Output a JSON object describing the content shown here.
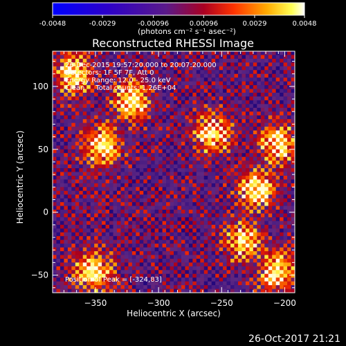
{
  "chart_data": {
    "type": "heatmap",
    "title": "Reconstructed RHESSI Image",
    "xlabel": "Heliocentric X (arcsec)",
    "ylabel": "Heliocentric Y (arcsec)",
    "xlim": [
      -384,
      -192
    ],
    "ylim": [
      -64,
      128
    ],
    "xticks": [
      -350,
      -300,
      -250,
      -200
    ],
    "yticks": [
      -50,
      0,
      50,
      100
    ],
    "colorbar": {
      "min": -0.0048,
      "max": 0.0048,
      "ticks": [
        "-0.0048",
        "-0.0029",
        "-0.00096",
        "0.00096",
        "0.0029",
        "0.0048"
      ],
      "tick_values": [
        -0.0048,
        -0.0029,
        -0.00096,
        0.00096,
        0.0029,
        0.0048
      ],
      "label": "(photons cm⁻² s⁻¹ asec⁻²)",
      "colormap": "blue-purple-red-yellow-white"
    },
    "annotations": [
      "26-Dec-2015 19:57:20.000 to 20:07:20.000",
      "Detectors: 1F 5F 7F, Att 0",
      "Energy Range: 12.0 - 25.0 keV",
      "Clean     Total counts: 1.26E+04"
    ],
    "peak_label": "Position of Peak = [-324,83]",
    "grid": false,
    "bright_regions": [
      {
        "x": -322,
        "y": 88
      },
      {
        "x": -257,
        "y": 63
      },
      {
        "x": -205,
        "y": 54
      },
      {
        "x": -222,
        "y": 18
      },
      {
        "x": -345,
        "y": 53
      },
      {
        "x": -352,
        "y": -47
      },
      {
        "x": -232,
        "y": -23
      },
      {
        "x": -206,
        "y": -48
      },
      {
        "x": -367,
        "y": 110
      }
    ]
  },
  "footer_date": "26-Oct-2017 21:21"
}
